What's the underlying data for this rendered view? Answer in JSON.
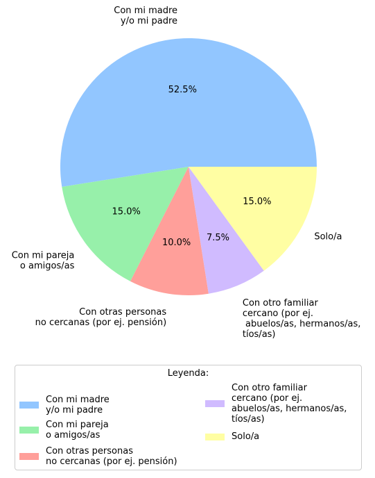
{
  "chart_data": {
    "type": "pie",
    "categories": [
      "Con mi madre\ny/o mi padre",
      "Con mi pareja\no amigos/as",
      "Con otras personas\nno cercanas (por ej. pensión)",
      "Con otro familiar\ncercano (por ej.\n abuelos/as, hermanos/as,\ntíos/as)",
      "Solo/a"
    ],
    "values": [
      52.5,
      15.0,
      10.0,
      7.5,
      15.0
    ],
    "value_labels": [
      "52.5%",
      "15.0%",
      "10.0%",
      "7.5%",
      "15.0%"
    ],
    "colors": [
      "#92c6ff",
      "#97f0aa",
      "#ff9f9a",
      "#d0bbff",
      "#fffea3"
    ],
    "legend": {
      "title": "Leyenda:",
      "placement": "bottom",
      "columns": 2
    }
  }
}
